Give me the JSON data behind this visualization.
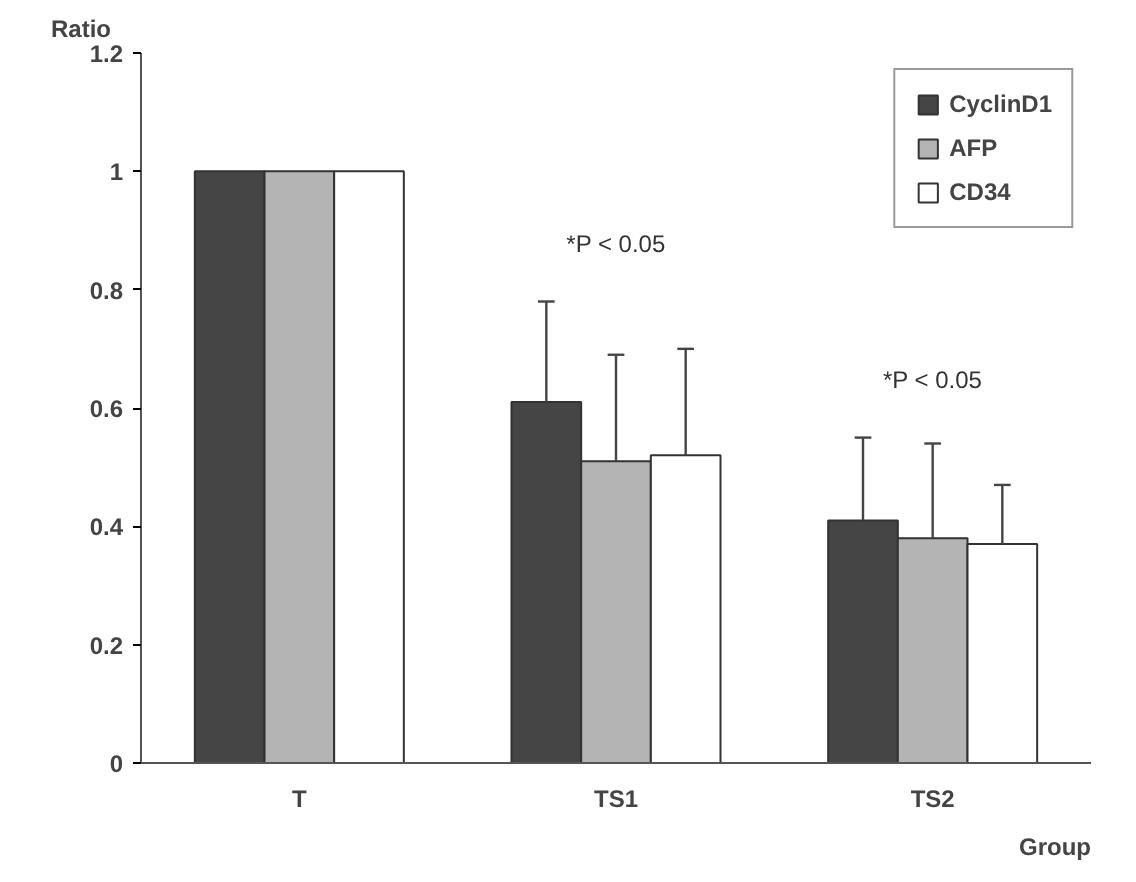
{
  "chart_data": {
    "type": "bar",
    "xlabel": "Group",
    "ylabel": "Ratio",
    "categories": [
      "T",
      "TS1",
      "TS2"
    ],
    "series": [
      {
        "name": "CyclinD1",
        "color": "#454545",
        "values": [
          1,
          0.61,
          0.41
        ],
        "errors": [
          null,
          [
            0.61,
            0.78
          ],
          [
            0.41,
            0.55
          ]
        ]
      },
      {
        "name": "AFP",
        "color": "#b4b4b4",
        "values": [
          1,
          0.51,
          0.38
        ],
        "errors": [
          null,
          [
            0.51,
            0.69
          ],
          [
            0.38,
            0.54
          ]
        ]
      },
      {
        "name": "CD34",
        "color": "#ffffff",
        "values": [
          1,
          0.52,
          0.37
        ],
        "errors": [
          null,
          [
            0.52,
            0.7
          ],
          [
            0.37,
            0.47
          ]
        ]
      }
    ],
    "ylim": [
      0,
      1.2
    ],
    "yticks": [
      0,
      0.2,
      0.4,
      0.6,
      0.8,
      1,
      1.2
    ],
    "annotations": [
      "*P < 0.05",
      "*P < 0.05"
    ],
    "legend": "top right",
    "grid": false
  }
}
